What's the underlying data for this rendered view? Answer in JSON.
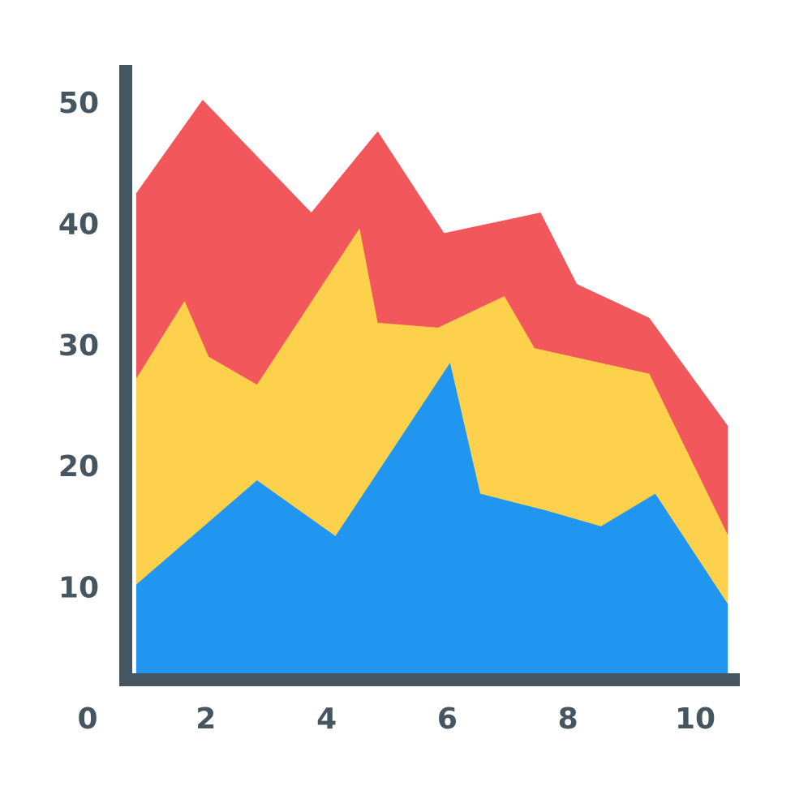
{
  "chart_data": {
    "type": "area",
    "stacked": true,
    "title": "",
    "xlabel": "",
    "ylabel": "",
    "xlim": [
      0,
      10.7
    ],
    "ylim": [
      0,
      50
    ],
    "x_tick_labels": [
      "0",
      "2",
      "4",
      "6",
      "8",
      "10"
    ],
    "y_tick_labels": [
      "10",
      "20",
      "30",
      "40",
      "50"
    ],
    "grid": false,
    "legend": "none",
    "axis_color": "#455660",
    "series": [
      {
        "color": "#2196F0",
        "points": [
          [
            0.9,
            10.2
          ],
          [
            2.9,
            18.8
          ],
          [
            4.2,
            14.2
          ],
          [
            6.1,
            28.5
          ],
          [
            6.6,
            17.7
          ],
          [
            7.7,
            16.3
          ],
          [
            8.6,
            15.0
          ],
          [
            9.5,
            17.7
          ],
          [
            10.7,
            8.6
          ]
        ]
      },
      {
        "color": "#FDD14C",
        "points": [
          [
            0.9,
            27.2
          ],
          [
            1.7,
            33.6
          ],
          [
            2.1,
            29.0
          ],
          [
            2.9,
            26.7
          ],
          [
            4.6,
            39.6
          ],
          [
            4.9,
            31.8
          ],
          [
            5.9,
            31.4
          ],
          [
            7.0,
            34.0
          ],
          [
            7.5,
            29.7
          ],
          [
            9.4,
            27.6
          ],
          [
            10.7,
            14.3
          ]
        ]
      },
      {
        "color": "#F2575B",
        "points": [
          [
            0.9,
            42.5
          ],
          [
            2.0,
            50.2
          ],
          [
            3.8,
            40.9
          ],
          [
            4.9,
            47.6
          ],
          [
            6.0,
            39.2
          ],
          [
            7.6,
            40.9
          ],
          [
            8.2,
            35.0
          ],
          [
            9.4,
            32.2
          ],
          [
            10.7,
            23.3
          ]
        ]
      }
    ]
  }
}
